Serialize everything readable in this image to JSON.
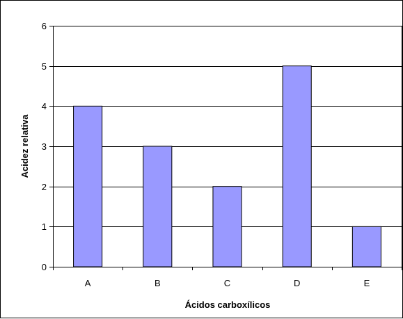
{
  "chart_data": {
    "type": "bar",
    "categories": [
      "A",
      "B",
      "C",
      "D",
      "E"
    ],
    "values": [
      4,
      3,
      2,
      5,
      1
    ],
    "title": "",
    "xlabel": "Ácidos carboxílicos",
    "ylabel": "Acidez relativa",
    "ylim": [
      0,
      6
    ],
    "yticks": [
      0,
      1,
      2,
      3,
      4,
      5,
      6
    ],
    "grid": true,
    "legend": "none",
    "colors": {
      "bar_fill": "#9999ff",
      "bar_stroke": "#000000",
      "grid": "#000000",
      "axis": "#000000"
    }
  }
}
